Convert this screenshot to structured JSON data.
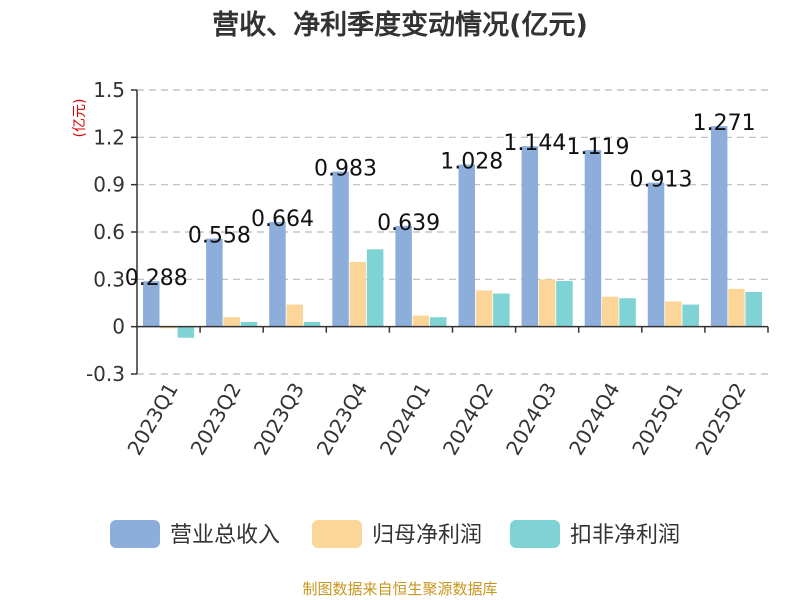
{
  "colors": {
    "revenue": "#8daddb",
    "parent": "#fcd598",
    "deducted": "#7fd3d4",
    "grid": "#bbbbbb",
    "axis": "#333333",
    "source": "#c8961e",
    "unit": "#e00000"
  },
  "source_text": "制图数据来自恒生聚源数据库",
  "chart_data": {
    "type": "bar",
    "title": "营收、净利季度变动情况(亿元)",
    "ylabel": "(亿元)",
    "xlabel": "",
    "ylim": [
      -0.3,
      1.5
    ],
    "yticks": [
      -0.3,
      0,
      0.3,
      0.6,
      0.9,
      1.2,
      1.5
    ],
    "ytick_labels": [
      "-0.3",
      "0",
      "0.3",
      "0.6",
      "0.9",
      "1.2",
      "1.5"
    ],
    "grid": true,
    "legend_position": "bottom",
    "categories": [
      "2023Q1",
      "2023Q2",
      "2023Q3",
      "2023Q4",
      "2024Q1",
      "2024Q2",
      "2024Q3",
      "2024Q4",
      "2025Q1",
      "2025Q2"
    ],
    "series": [
      {
        "name": "营业总收入",
        "values": [
          0.288,
          0.558,
          0.664,
          0.983,
          0.639,
          1.028,
          1.144,
          1.119,
          0.913,
          1.271
        ]
      },
      {
        "name": "归母净利润",
        "values": [
          -0.01,
          0.06,
          0.14,
          0.41,
          0.07,
          0.23,
          0.3,
          0.19,
          0.16,
          0.24
        ]
      },
      {
        "name": "扣非净利润",
        "values": [
          -0.07,
          0.03,
          0.03,
          0.49,
          0.06,
          0.21,
          0.29,
          0.18,
          0.14,
          0.22
        ]
      }
    ],
    "data_labels": [
      "0.288",
      "0.558",
      "0.664",
      "0.983",
      "0.639",
      "1.028",
      "1.144",
      "1.119",
      "0.913",
      "1.271"
    ]
  }
}
